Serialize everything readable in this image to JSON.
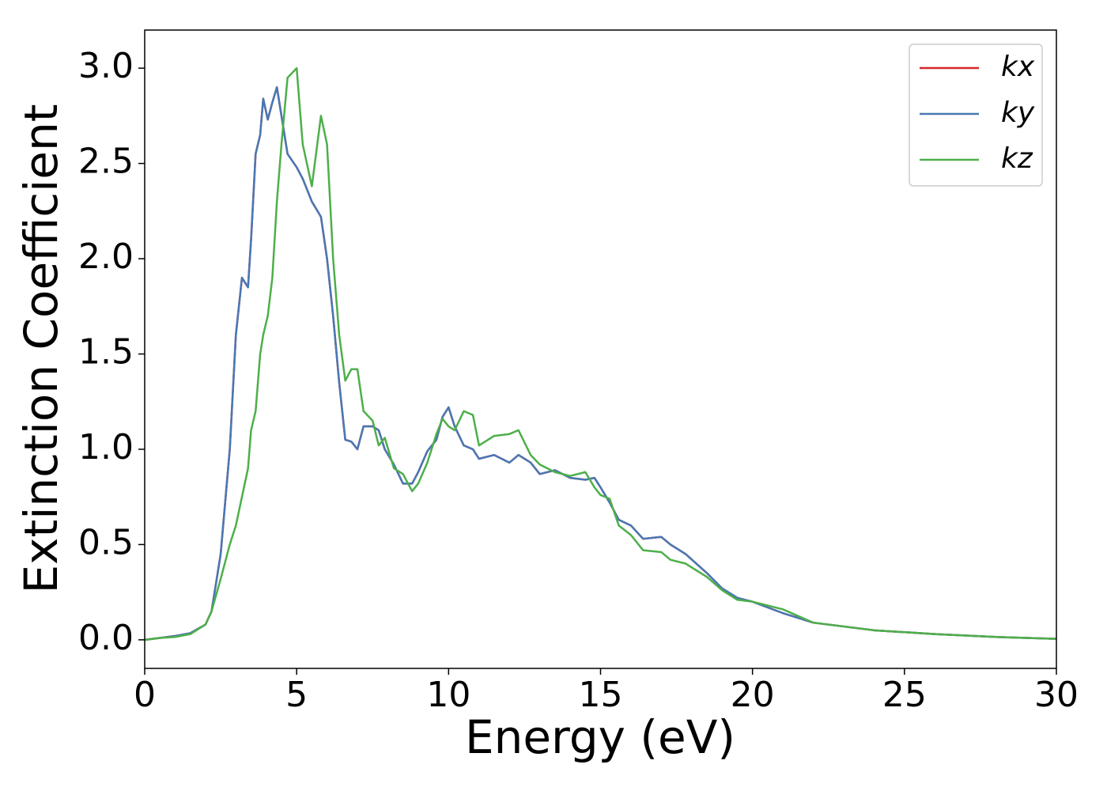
{
  "chart_data": {
    "type": "line",
    "xlabel": "Energy (eV)",
    "ylabel": "Extinction Coefficient",
    "x": [
      0,
      0.5,
      1,
      1.5,
      2,
      2.2,
      2.5,
      2.8,
      3.0,
      3.2,
      3.4,
      3.5,
      3.65,
      3.8,
      3.9,
      4.05,
      4.2,
      4.35,
      4.5,
      4.7,
      5.0,
      5.2,
      5.5,
      5.8,
      6.0,
      6.2,
      6.4,
      6.6,
      6.8,
      7.0,
      7.2,
      7.5,
      7.7,
      7.9,
      8.2,
      8.5,
      8.8,
      9.0,
      9.3,
      9.6,
      9.8,
      10.0,
      10.2,
      10.5,
      10.8,
      11.0,
      11.5,
      12.0,
      12.3,
      12.7,
      13.0,
      13.5,
      14.0,
      14.5,
      14.8,
      15.0,
      15.3,
      15.6,
      16.0,
      16.4,
      17.0,
      17.3,
      17.8,
      18.5,
      19.0,
      19.5,
      20.0,
      21.0,
      22.0,
      24.0,
      26.0,
      28.0,
      30.0
    ],
    "series": [
      {
        "name": "kx",
        "color": "#d62728",
        "values": [
          0,
          0.01,
          0.02,
          0.035,
          0.08,
          0.15,
          0.45,
          1.0,
          1.6,
          1.9,
          1.85,
          2.1,
          2.55,
          2.65,
          2.84,
          2.73,
          2.82,
          2.9,
          2.75,
          2.55,
          2.48,
          2.42,
          2.3,
          2.22,
          2.0,
          1.7,
          1.35,
          1.05,
          1.04,
          1.0,
          1.12,
          1.12,
          1.1,
          1.0,
          0.92,
          0.82,
          0.82,
          0.88,
          0.99,
          1.05,
          1.17,
          1.22,
          1.12,
          1.02,
          1.0,
          0.95,
          0.97,
          0.93,
          0.97,
          0.93,
          0.87,
          0.89,
          0.85,
          0.84,
          0.85,
          0.8,
          0.72,
          0.63,
          0.6,
          0.53,
          0.54,
          0.5,
          0.45,
          0.35,
          0.27,
          0.22,
          0.2,
          0.14,
          0.09,
          0.05,
          0.03,
          0.015,
          0.005
        ]
      },
      {
        "name": "ky",
        "color": "#4878b4",
        "values": [
          0,
          0.01,
          0.02,
          0.035,
          0.08,
          0.15,
          0.45,
          1.0,
          1.6,
          1.9,
          1.85,
          2.1,
          2.55,
          2.65,
          2.84,
          2.73,
          2.82,
          2.9,
          2.75,
          2.55,
          2.48,
          2.42,
          2.3,
          2.22,
          2.0,
          1.7,
          1.35,
          1.05,
          1.04,
          1.0,
          1.12,
          1.12,
          1.1,
          1.0,
          0.92,
          0.82,
          0.82,
          0.88,
          0.99,
          1.05,
          1.17,
          1.22,
          1.12,
          1.02,
          1.0,
          0.95,
          0.97,
          0.93,
          0.97,
          0.93,
          0.87,
          0.89,
          0.85,
          0.84,
          0.85,
          0.8,
          0.72,
          0.63,
          0.6,
          0.53,
          0.54,
          0.5,
          0.45,
          0.35,
          0.27,
          0.22,
          0.2,
          0.14,
          0.09,
          0.05,
          0.03,
          0.015,
          0.005
        ]
      },
      {
        "name": "kz",
        "color": "#4daf4a",
        "values": [
          0,
          0.01,
          0.015,
          0.03,
          0.08,
          0.15,
          0.32,
          0.5,
          0.6,
          0.75,
          0.9,
          1.1,
          1.2,
          1.5,
          1.6,
          1.7,
          1.9,
          2.3,
          2.6,
          2.95,
          3.0,
          2.6,
          2.38,
          2.75,
          2.6,
          2.0,
          1.6,
          1.36,
          1.42,
          1.42,
          1.2,
          1.15,
          1.02,
          1.06,
          0.9,
          0.87,
          0.78,
          0.82,
          0.93,
          1.08,
          1.16,
          1.12,
          1.1,
          1.2,
          1.18,
          1.02,
          1.07,
          1.08,
          1.1,
          0.97,
          0.92,
          0.88,
          0.86,
          0.88,
          0.8,
          0.76,
          0.74,
          0.6,
          0.55,
          0.47,
          0.46,
          0.42,
          0.4,
          0.33,
          0.26,
          0.21,
          0.2,
          0.16,
          0.09,
          0.05,
          0.03,
          0.015,
          0.005
        ]
      }
    ],
    "xlim": [
      0,
      30
    ],
    "xticks": [
      0,
      5,
      10,
      15,
      20,
      25,
      30
    ],
    "ylim": [
      -0.15,
      3.2
    ],
    "yticks": [
      {
        "value": 0,
        "label": "0.0"
      },
      0.5,
      {
        "value": 1,
        "label": "1.0"
      },
      1.5,
      {
        "value": 2,
        "label": "2.0"
      },
      2.5,
      {
        "value": 3,
        "label": "3.0"
      }
    ],
    "legend": "upper right",
    "grid": false
  }
}
